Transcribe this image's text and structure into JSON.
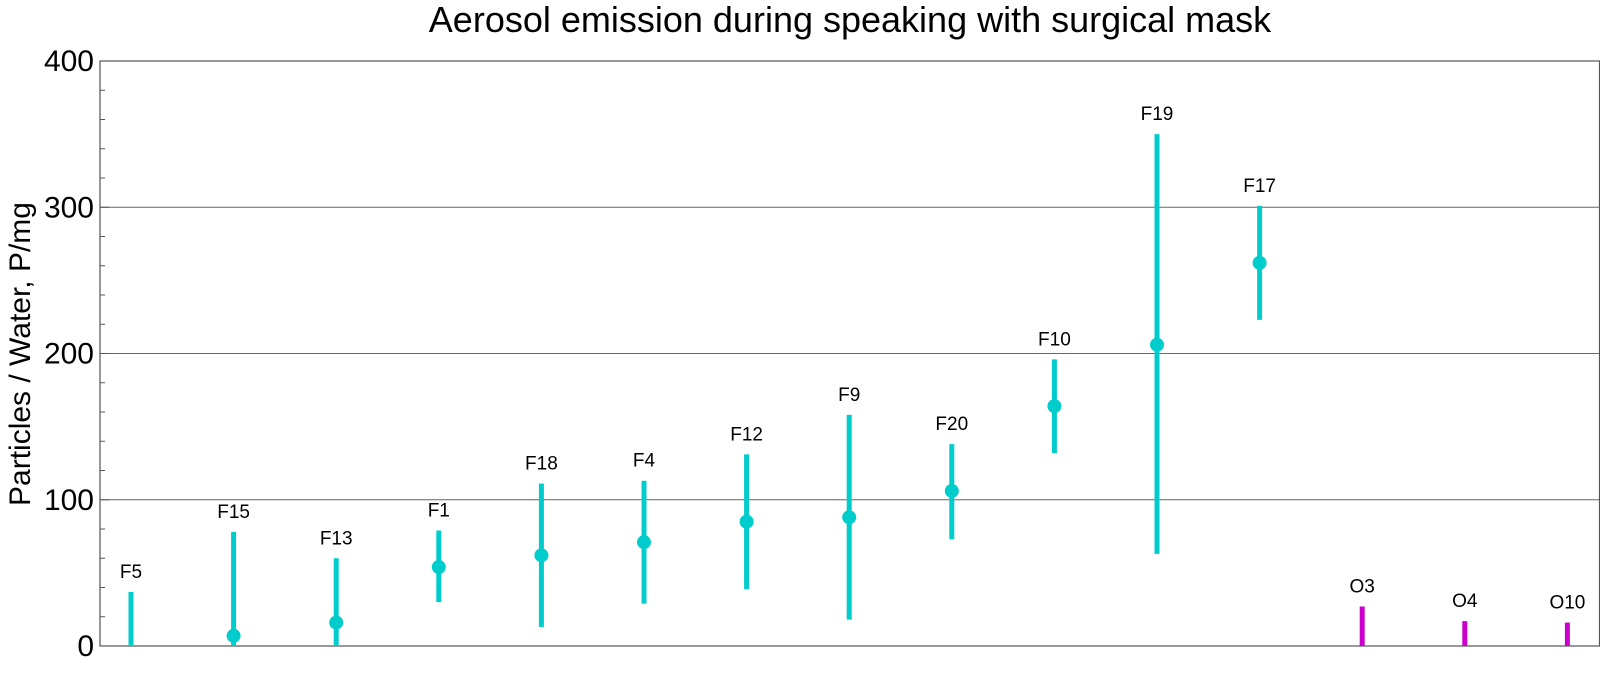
{
  "chart_data": {
    "type": "scatter",
    "title": "Aerosol emission during speaking with surgical mask",
    "xlabel": "",
    "ylabel": "Particles / Water,   P/mg",
    "ylim": [
      0,
      400
    ],
    "yticks": [
      0,
      100,
      200,
      300,
      400
    ],
    "grid": "horizontal",
    "points": [
      {
        "label": "F5",
        "x": 1,
        "value": null,
        "low": 0,
        "high": 37,
        "color": "#00cccc"
      },
      {
        "label": "F15",
        "x": 2,
        "value": 7,
        "low": 0,
        "high": 78,
        "color": "#00cccc"
      },
      {
        "label": "F13",
        "x": 3,
        "value": 16,
        "low": 0,
        "high": 60,
        "color": "#00cccc"
      },
      {
        "label": "F1",
        "x": 4,
        "value": 54,
        "low": 30,
        "high": 79,
        "color": "#00cccc"
      },
      {
        "label": "F18",
        "x": 5,
        "value": 62,
        "low": 13,
        "high": 111,
        "color": "#00cccc"
      },
      {
        "label": "F4",
        "x": 6,
        "value": 71,
        "low": 29,
        "high": 113,
        "color": "#00cccc"
      },
      {
        "label": "F12",
        "x": 7,
        "value": 85,
        "low": 39,
        "high": 131,
        "color": "#00cccc"
      },
      {
        "label": "F9",
        "x": 8,
        "value": 88,
        "low": 18,
        "high": 158,
        "color": "#00cccc"
      },
      {
        "label": "F20",
        "x": 9,
        "value": 106,
        "low": 73,
        "high": 138,
        "color": "#00cccc"
      },
      {
        "label": "F10",
        "x": 10,
        "value": 164,
        "low": 132,
        "high": 196,
        "color": "#00cccc"
      },
      {
        "label": "F19",
        "x": 11,
        "value": 206,
        "low": 63,
        "high": 350,
        "color": "#00cccc"
      },
      {
        "label": "F17",
        "x": 12,
        "value": 262,
        "low": 223,
        "high": 301,
        "color": "#00cccc"
      },
      {
        "label": "O3",
        "x": 13,
        "value": null,
        "low": 0,
        "high": 27,
        "color": "#cc00cc"
      },
      {
        "label": "O4",
        "x": 14,
        "value": null,
        "low": 0,
        "high": 17,
        "color": "#cc00cc"
      },
      {
        "label": "O10",
        "x": 15,
        "value": null,
        "low": 0,
        "high": 16,
        "color": "#cc00cc"
      }
    ]
  }
}
